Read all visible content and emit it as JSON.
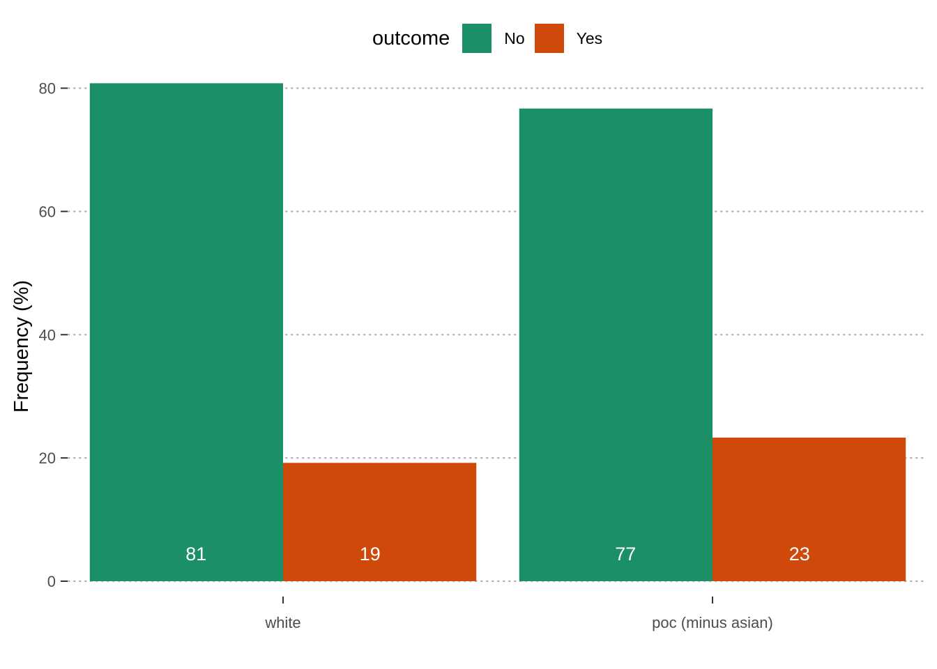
{
  "legend": {
    "title": "outcome",
    "items": [
      {
        "label": "No",
        "color": "#1b9066"
      },
      {
        "label": "Yes",
        "color": "#cf4a0a"
      }
    ]
  },
  "chart_data": {
    "type": "bar",
    "categories": [
      "white",
      "poc (minus asian)"
    ],
    "series": [
      {
        "name": "No",
        "values": [
          80.8,
          76.7
        ],
        "labels": [
          "81",
          "77"
        ],
        "color": "#1b9066"
      },
      {
        "name": "Yes",
        "values": [
          19.2,
          23.3
        ],
        "labels": [
          "19",
          "23"
        ],
        "color": "#cf4a0a"
      }
    ],
    "xlabel": "",
    "ylabel": "Frequency (%)",
    "ylim": [
      0,
      83
    ],
    "yticks": [
      0,
      20,
      40,
      60,
      80
    ],
    "grid": "horizontal dotted",
    "legend_position": "top"
  }
}
